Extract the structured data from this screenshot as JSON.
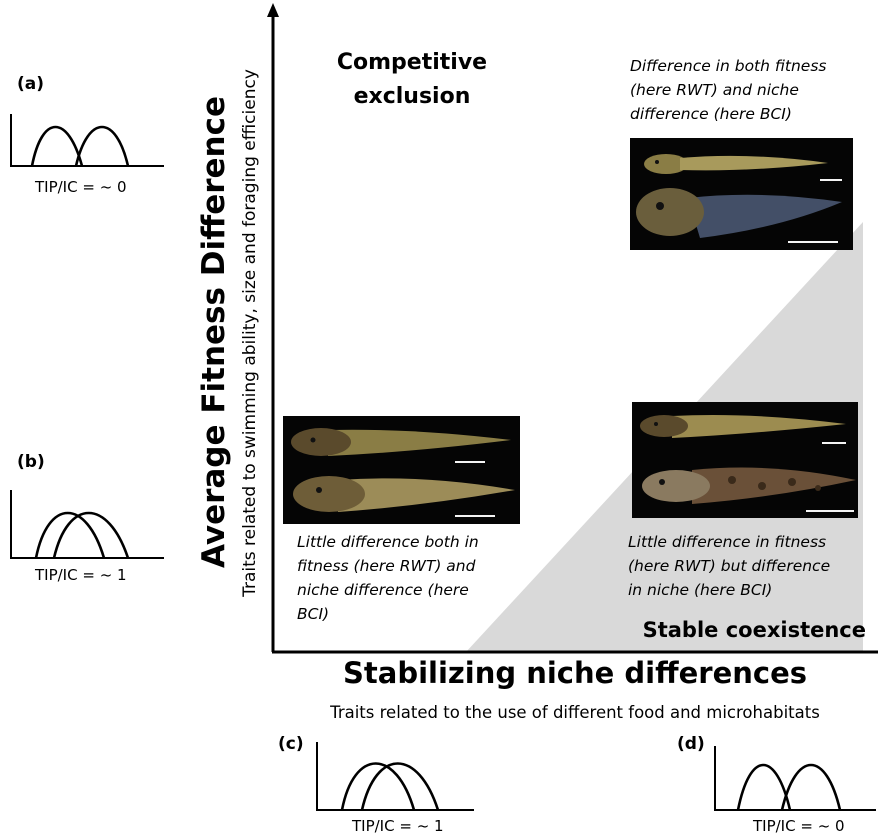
{
  "y_axis": {
    "title": "Average Fitness Difference",
    "subtitle": "Traits related to swimming ability, size and foraging efficiency"
  },
  "x_axis": {
    "title": "Stabilizing niche differences",
    "subtitle": "Traits related to the use of different food and microhabitats"
  },
  "regions": {
    "competitive_exclusion": [
      "Competitive",
      "exclusion"
    ],
    "stable_coexistence": "Stable coexistence"
  },
  "captions": {
    "top_right": [
      "Difference in both fitness",
      "(here RWT) and niche",
      "difference (here BCI)"
    ],
    "bottom_left": [
      "Little difference both in",
      "fitness (here RWT) and",
      "niche difference (here",
      "BCI)"
    ],
    "bottom_right": [
      "Little difference in fitness",
      "(here RWT) but difference",
      "in niche (here BCI)"
    ]
  },
  "panels": [
    {
      "label": "(a)",
      "tip_label": "TIP/IC = ~ 0",
      "overlap": "low"
    },
    {
      "label": "(b)",
      "tip_label": "TIP/IC = ~ 1",
      "overlap": "high"
    },
    {
      "label": "(c)",
      "tip_label": "TIP/IC = ~ 1",
      "overlap": "high"
    },
    {
      "label": "(d)",
      "tip_label": "TIP/IC = ~ 0",
      "overlap": "low"
    }
  ],
  "colors": {
    "coexistence_region": "#d9d9d9",
    "photo_background": "#050505",
    "tadpole_body": "#8a7d45",
    "tadpole_body_dark": "#5a4a2c"
  }
}
